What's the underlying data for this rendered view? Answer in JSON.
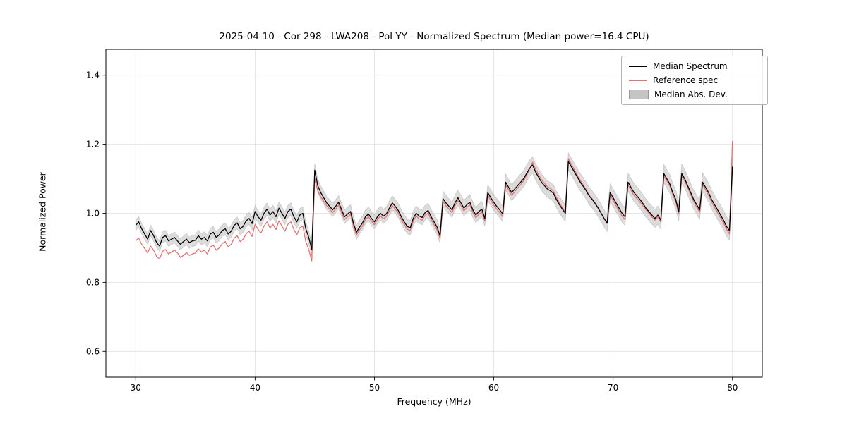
{
  "figure": {
    "title": "2025-04-10 - Cor 298 - LWA208 - Pol YY - Normalized Spectrum (Median power=16.4 CPU)",
    "xlabel": "Frequency (MHz)",
    "ylabel": "Normalized Power"
  },
  "legend": {
    "position": "upper right",
    "items": [
      {
        "label": "Median Spectrum",
        "type": "line",
        "color": "#000000"
      },
      {
        "label": "Reference spec",
        "type": "line",
        "color": "#e87272"
      },
      {
        "label": "Median Abs. Dev.",
        "type": "patch",
        "color": "#c4c4c4"
      }
    ]
  },
  "chart_data": {
    "type": "line",
    "title": "2025-04-10 - Cor 298 - LWA208 - Pol YY - Normalized Spectrum (Median power=16.4 CPU)",
    "xlabel": "Frequency (MHz)",
    "ylabel": "Normalized Power",
    "xlim": [
      27.5,
      82.5
    ],
    "ylim": [
      0.525,
      1.475
    ],
    "xticks": [
      30,
      40,
      50,
      60,
      70,
      80
    ],
    "yticks": [
      0.6,
      0.8,
      1.0,
      1.2,
      1.4
    ],
    "grid": true,
    "legend_position": "upper right",
    "x": {
      "start": 30.0,
      "step": 0.25,
      "n": 201,
      "unit": "MHz"
    },
    "series": [
      {
        "name": "Median Spectrum",
        "color": "#000000",
        "values": [
          0.965,
          0.975,
          0.955,
          0.94,
          0.925,
          0.95,
          0.935,
          0.915,
          0.905,
          0.93,
          0.935,
          0.92,
          0.925,
          0.93,
          0.92,
          0.91,
          0.918,
          0.925,
          0.915,
          0.92,
          0.922,
          0.935,
          0.925,
          0.93,
          0.92,
          0.94,
          0.945,
          0.93,
          0.938,
          0.95,
          0.955,
          0.94,
          0.948,
          0.965,
          0.972,
          0.955,
          0.962,
          0.978,
          0.985,
          0.97,
          1.005,
          0.99,
          0.98,
          1.0,
          1.012,
          0.995,
          1.005,
          0.99,
          1.015,
          1.0,
          0.985,
          1.005,
          1.012,
          0.99,
          0.975,
          0.995,
          1.0,
          0.955,
          0.93,
          0.895,
          1.125,
          1.08,
          1.06,
          1.045,
          1.03,
          1.02,
          1.01,
          1.02,
          1.032,
          1.01,
          0.99,
          0.998,
          1.005,
          0.97,
          0.945,
          0.96,
          0.972,
          0.99,
          0.998,
          0.985,
          0.975,
          0.99,
          1.0,
          0.992,
          0.998,
          1.015,
          1.03,
          1.02,
          1.008,
          0.99,
          0.975,
          0.962,
          0.958,
          0.985,
          1.0,
          0.992,
          0.988,
          1.002,
          1.008,
          0.99,
          0.975,
          0.96,
          0.935,
          1.042,
          1.03,
          1.02,
          1.01,
          1.03,
          1.045,
          1.03,
          1.015,
          1.025,
          1.032,
          1.01,
          0.995,
          1.005,
          1.012,
          0.985,
          1.06,
          1.045,
          1.032,
          1.02,
          1.01,
          0.998,
          1.09,
          1.075,
          1.06,
          1.07,
          1.08,
          1.09,
          1.1,
          1.115,
          1.13,
          1.14,
          1.12,
          1.105,
          1.09,
          1.08,
          1.07,
          1.065,
          1.058,
          1.04,
          1.025,
          1.012,
          1.0,
          1.15,
          1.135,
          1.12,
          1.105,
          1.09,
          1.078,
          1.065,
          1.05,
          1.04,
          1.028,
          1.015,
          1.0,
          0.985,
          0.972,
          1.06,
          1.045,
          1.03,
          1.015,
          1.0,
          0.99,
          1.09,
          1.075,
          1.06,
          1.05,
          1.04,
          1.028,
          1.015,
          1.005,
          0.995,
          0.985,
          0.995,
          0.98,
          1.115,
          1.1,
          1.085,
          1.06,
          1.04,
          1.005,
          1.115,
          1.1,
          1.08,
          1.06,
          1.04,
          1.025,
          1.01,
          1.09,
          1.075,
          1.06,
          1.04,
          1.025,
          1.01,
          0.995,
          0.98,
          0.962,
          0.95,
          1.135
        ]
      },
      {
        "name": "Reference spec",
        "color": "#e87272",
        "values": [
          0.92,
          0.928,
          0.91,
          0.898,
          0.885,
          0.905,
          0.893,
          0.875,
          0.868,
          0.89,
          0.895,
          0.882,
          0.888,
          0.893,
          0.885,
          0.872,
          0.878,
          0.886,
          0.878,
          0.882,
          0.885,
          0.897,
          0.888,
          0.893,
          0.882,
          0.902,
          0.908,
          0.893,
          0.9,
          0.912,
          0.918,
          0.903,
          0.91,
          0.928,
          0.935,
          0.918,
          0.925,
          0.94,
          0.948,
          0.933,
          0.968,
          0.953,
          0.943,
          0.963,
          0.975,
          0.958,
          0.968,
          0.953,
          0.978,
          0.963,
          0.948,
          0.968,
          0.975,
          0.953,
          0.938,
          0.958,
          0.963,
          0.918,
          0.895,
          0.862,
          1.1,
          1.065,
          1.048,
          1.035,
          1.022,
          1.012,
          1.002,
          1.012,
          1.024,
          1.002,
          0.982,
          0.99,
          0.997,
          0.962,
          0.937,
          0.952,
          0.964,
          0.982,
          0.99,
          0.977,
          0.967,
          0.982,
          0.992,
          0.984,
          0.99,
          1.007,
          1.022,
          1.012,
          1.0,
          0.982,
          0.967,
          0.954,
          0.95,
          0.977,
          0.992,
          0.984,
          0.98,
          0.994,
          1.0,
          0.982,
          0.967,
          0.952,
          0.927,
          1.034,
          1.022,
          1.012,
          1.002,
          1.022,
          1.037,
          1.022,
          1.007,
          1.017,
          1.024,
          1.002,
          0.987,
          0.997,
          1.004,
          0.977,
          1.052,
          1.037,
          1.024,
          1.012,
          1.002,
          0.99,
          1.082,
          1.067,
          1.052,
          1.062,
          1.073,
          1.083,
          1.094,
          1.11,
          1.127,
          1.148,
          1.128,
          1.112,
          1.097,
          1.087,
          1.077,
          1.072,
          1.064,
          1.046,
          1.03,
          1.017,
          1.004,
          1.158,
          1.142,
          1.126,
          1.11,
          1.095,
          1.082,
          1.068,
          1.052,
          1.042,
          1.03,
          1.016,
          1.0,
          0.984,
          0.97,
          1.052,
          1.038,
          1.022,
          1.007,
          0.992,
          0.982,
          1.082,
          1.067,
          1.052,
          1.042,
          1.033,
          1.022,
          1.01,
          1.0,
          0.99,
          0.98,
          0.99,
          0.974,
          1.108,
          1.094,
          1.08,
          1.054,
          1.034,
          0.998,
          1.108,
          1.094,
          1.075,
          1.054,
          1.034,
          1.018,
          1.003,
          1.084,
          1.068,
          1.052,
          1.033,
          1.017,
          1.002,
          0.987,
          0.972,
          0.954,
          0.94,
          1.21
        ]
      },
      {
        "name": "Median Abs. Dev.",
        "type": "band",
        "band_around": "Median Spectrum",
        "color": "#c4c4c4",
        "half_width_start": 0.015,
        "half_width_end": 0.028
      }
    ]
  }
}
